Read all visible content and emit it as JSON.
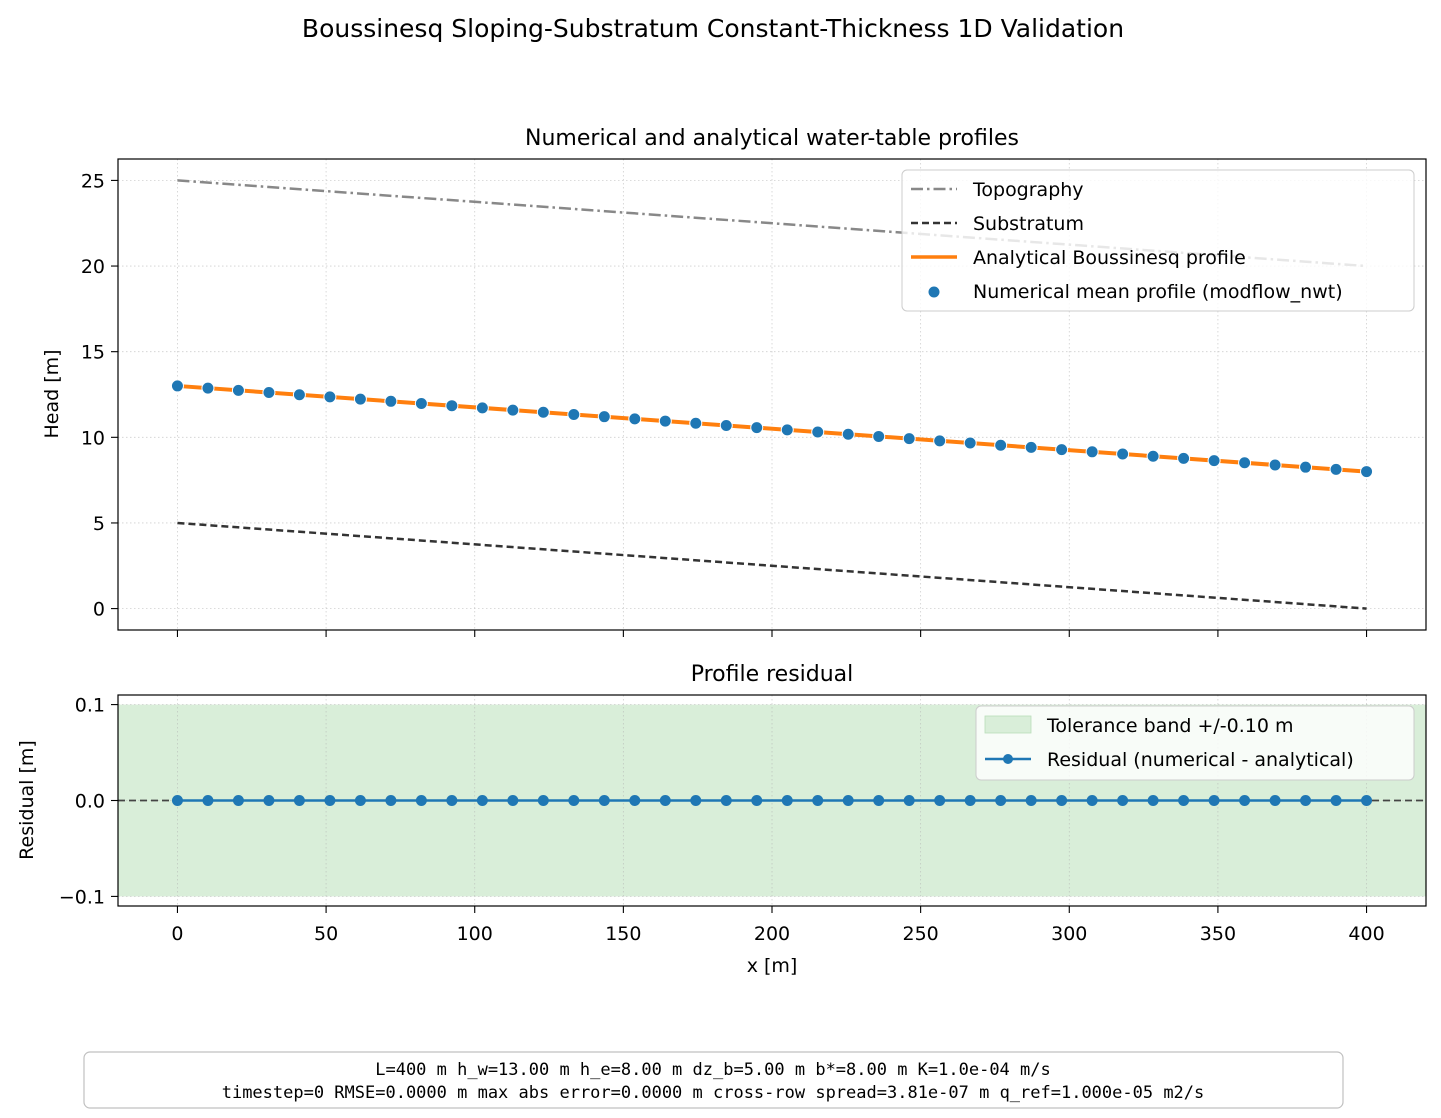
{
  "figure": {
    "suptitle": "Boussinesq Sloping-Substratum Constant-Thickness 1D Validation",
    "info_line1": "L=400 m   h_w=13.00 m   h_e=8.00 m   dz_b=5.00 m   b*=8.00 m   K=1.0e-04 m/s",
    "info_line2": "timestep=0   RMSE=0.0000 m   max abs error=0.0000 m   cross-row spread=3.81e-07 m   q_ref=1.000e-05 m2/s"
  },
  "chart_data": [
    {
      "type": "line",
      "title": "Numerical and analytical water-table profiles",
      "xlabel": "",
      "ylabel": "Head [m]",
      "xlim": [
        -20,
        420
      ],
      "ylim": [
        -1.25,
        26.25
      ],
      "xticks": [
        0,
        50,
        100,
        150,
        200,
        250,
        300,
        350,
        400
      ],
      "yticks": [
        0,
        5,
        10,
        15,
        20,
        25
      ],
      "grid": true,
      "legend_position": "top-right",
      "series": [
        {
          "name": "Topography",
          "style": "dashdot",
          "color": "#888888",
          "x": [
            0,
            400
          ],
          "y": [
            25,
            20
          ]
        },
        {
          "name": "Substratum",
          "style": "dashed",
          "color": "#333333",
          "x": [
            0,
            400
          ],
          "y": [
            5,
            0
          ]
        },
        {
          "name": "Analytical Boussinesq profile",
          "style": "solid",
          "color": "#ff7f0e",
          "x": [
            0,
            400
          ],
          "y": [
            13,
            8
          ]
        },
        {
          "name": "Numerical mean profile (modflow_nwt)",
          "style": "markers",
          "color": "#1f77b4",
          "x_start": 0,
          "x_end": 400,
          "count": 40,
          "y_start": 13,
          "y_end": 8
        }
      ]
    },
    {
      "type": "line",
      "title": "Profile residual",
      "xlabel": "x [m]",
      "ylabel": "Residual [m]",
      "xlim": [
        -20,
        420
      ],
      "ylim": [
        -0.11,
        0.11
      ],
      "xticks": [
        0,
        50,
        100,
        150,
        200,
        250,
        300,
        350,
        400
      ],
      "yticks": [
        -0.1,
        0.0,
        0.1
      ],
      "ytick_labels": [
        "−0.1",
        "0.0",
        "0.1"
      ],
      "grid": true,
      "legend_position": "top-right",
      "band": {
        "name": "Tolerance band +/-0.10 m",
        "lower": -0.1,
        "upper": 0.1,
        "color": "#d9eed9"
      },
      "zero_line": {
        "y": 0.0,
        "style": "dashed",
        "color": "#444444"
      },
      "series": [
        {
          "name": "Residual (numerical - analytical)",
          "style": "line-markers",
          "color": "#1f77b4",
          "x_start": 0,
          "x_end": 400,
          "count": 40,
          "value": 0.0
        }
      ]
    }
  ]
}
